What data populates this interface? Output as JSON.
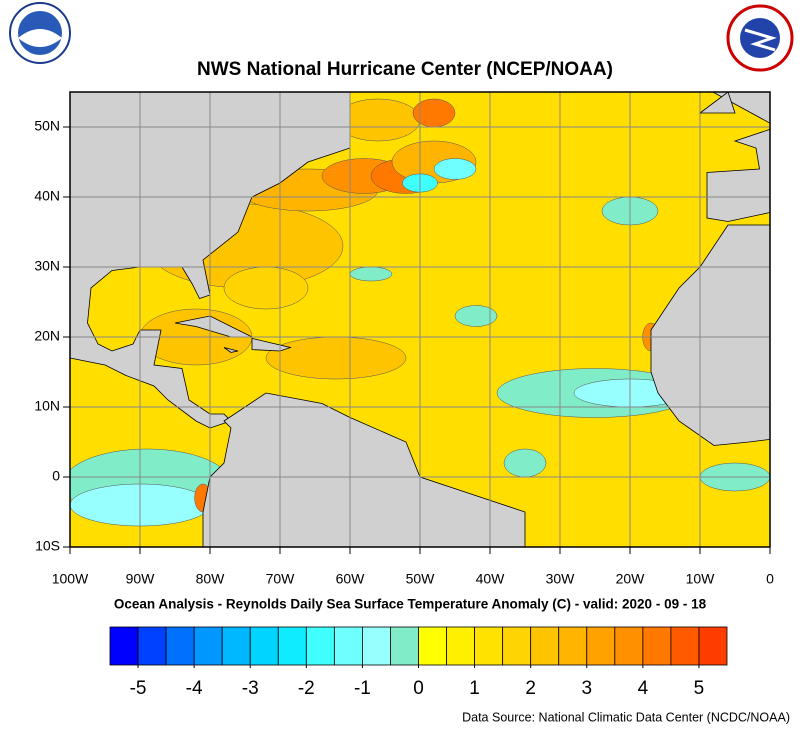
{
  "title": "NWS National Hurricane Center (NCEP/NOAA)",
  "subtitle": "Ocean Analysis - Reynolds Daily Sea Surface Temperature Anomaly (C) - valid: 2020 - 09 - 18",
  "source": "Data Source: National Climatic Data Center (NCDC/NOAA)",
  "map": {
    "xlim": [
      -100,
      0
    ],
    "ylim": [
      -10,
      55
    ],
    "xticks": [
      {
        "value": -100,
        "label": "100W"
      },
      {
        "value": -90,
        "label": "90W"
      },
      {
        "value": -80,
        "label": "80W"
      },
      {
        "value": -70,
        "label": "70W"
      },
      {
        "value": -60,
        "label": "60W"
      },
      {
        "value": -50,
        "label": "50W"
      },
      {
        "value": -40,
        "label": "40W"
      },
      {
        "value": -30,
        "label": "30W"
      },
      {
        "value": -20,
        "label": "20W"
      },
      {
        "value": -10,
        "label": "10W"
      },
      0
    ],
    "yticks": [
      {
        "value": -10,
        "label": "10S"
      },
      0,
      {
        "value": 10,
        "label": "10N"
      },
      {
        "value": 20,
        "label": "20N"
      },
      {
        "value": 30,
        "label": "30N"
      },
      {
        "value": 40,
        "label": "40N"
      },
      {
        "value": 50,
        "label": "50N"
      }
    ],
    "grid": true
  },
  "colorbar": {
    "lim": [
      -5.5,
      5.5
    ],
    "ticks": [
      -5,
      -4,
      -3,
      -2,
      -1,
      0,
      1,
      2,
      3,
      4,
      5
    ],
    "colors": [
      "#0000ff",
      "#0040ff",
      "#0070ff",
      "#0098ff",
      "#00b8ff",
      "#00d4ff",
      "#10ecff",
      "#40ffff",
      "#70ffff",
      "#98ffff",
      "#80ecc8",
      "#ffff00",
      "#fff000",
      "#ffe200",
      "#ffd400",
      "#ffc400",
      "#ffb400",
      "#ffa200",
      "#ff9000",
      "#ff7800",
      "#ff5a00",
      "#ff3c00"
    ]
  }
}
